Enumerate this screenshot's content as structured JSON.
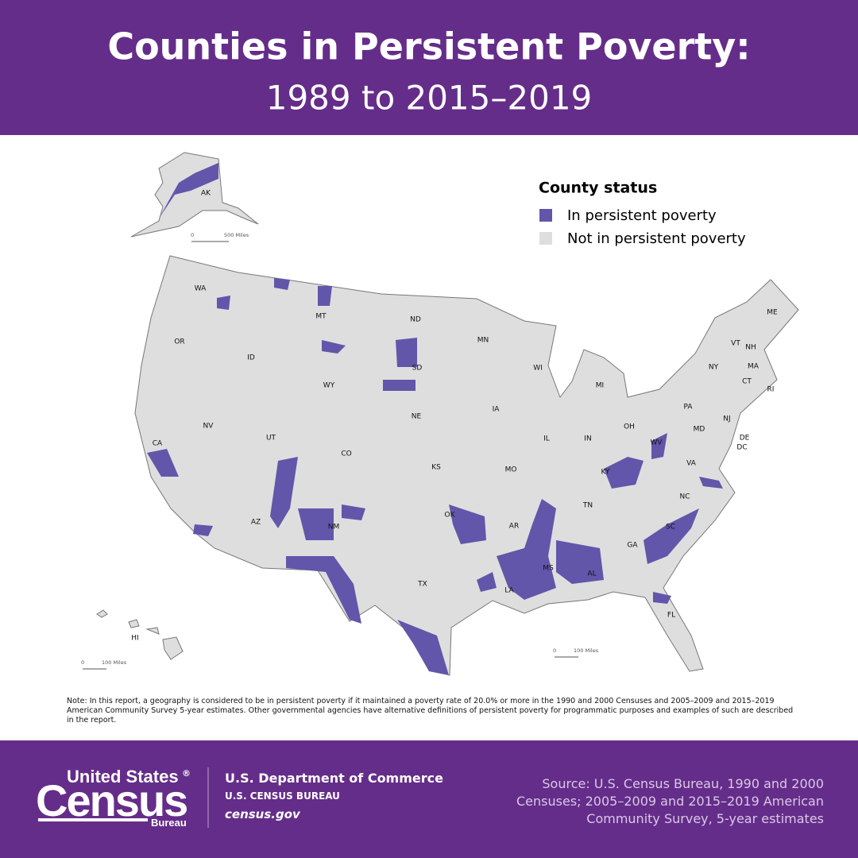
{
  "header": {
    "title": "Counties in Persistent Poverty:",
    "subtitle": "1989 to 2015–2019"
  },
  "legend": {
    "title": "County status",
    "items": [
      {
        "label": "In persistent poverty",
        "color": "#6256aa"
      },
      {
        "label": "Not in persistent poverty",
        "color": "#dedede"
      }
    ]
  },
  "map": {
    "state_labels": [
      "WA",
      "OR",
      "CA",
      "NV",
      "ID",
      "MT",
      "WY",
      "UT",
      "AZ",
      "CO",
      "NM",
      "ND",
      "SD",
      "NE",
      "KS",
      "OK",
      "TX",
      "MN",
      "IA",
      "MO",
      "AR",
      "LA",
      "WI",
      "IL",
      "MI",
      "IN",
      "OH",
      "KY",
      "TN",
      "MS",
      "AL",
      "GA",
      "FL",
      "SC",
      "NC",
      "VA",
      "WV",
      "PA",
      "NY",
      "VT",
      "NH",
      "ME",
      "MA",
      "CT",
      "RI",
      "NJ",
      "MD",
      "DE",
      "DC",
      "AK",
      "HI"
    ],
    "scale_bars": [
      {
        "start": "0",
        "end": "500 Miles"
      },
      {
        "start": "0",
        "end": "100 Miles"
      },
      {
        "start": "0",
        "end": "100 Miles"
      }
    ]
  },
  "note": "Note: In this report, a geography is considered to be in persistent poverty if it maintained a poverty rate of 20.0% or more in the 1990 and 2000 Censuses and 2005–2009 and 2015–2019 American Community Survey 5-year estimates. Other governmental agencies have alternative definitions of persistent poverty for programmatic purposes and examples of such are described in the report.",
  "footer": {
    "logo": {
      "line1": "United States",
      "mark": "®",
      "line2": "Census",
      "line3": "Bureau"
    },
    "department": "U.S. Department of Commerce",
    "bureau": "U.S. CENSUS BUREAU",
    "website": "census.gov",
    "source": [
      "Source: U.S. Census Bureau, 1990 and 2000",
      "Censuses; 2005–2009 and 2015–2019 American",
      "Community Survey, 5-year estimates"
    ]
  }
}
